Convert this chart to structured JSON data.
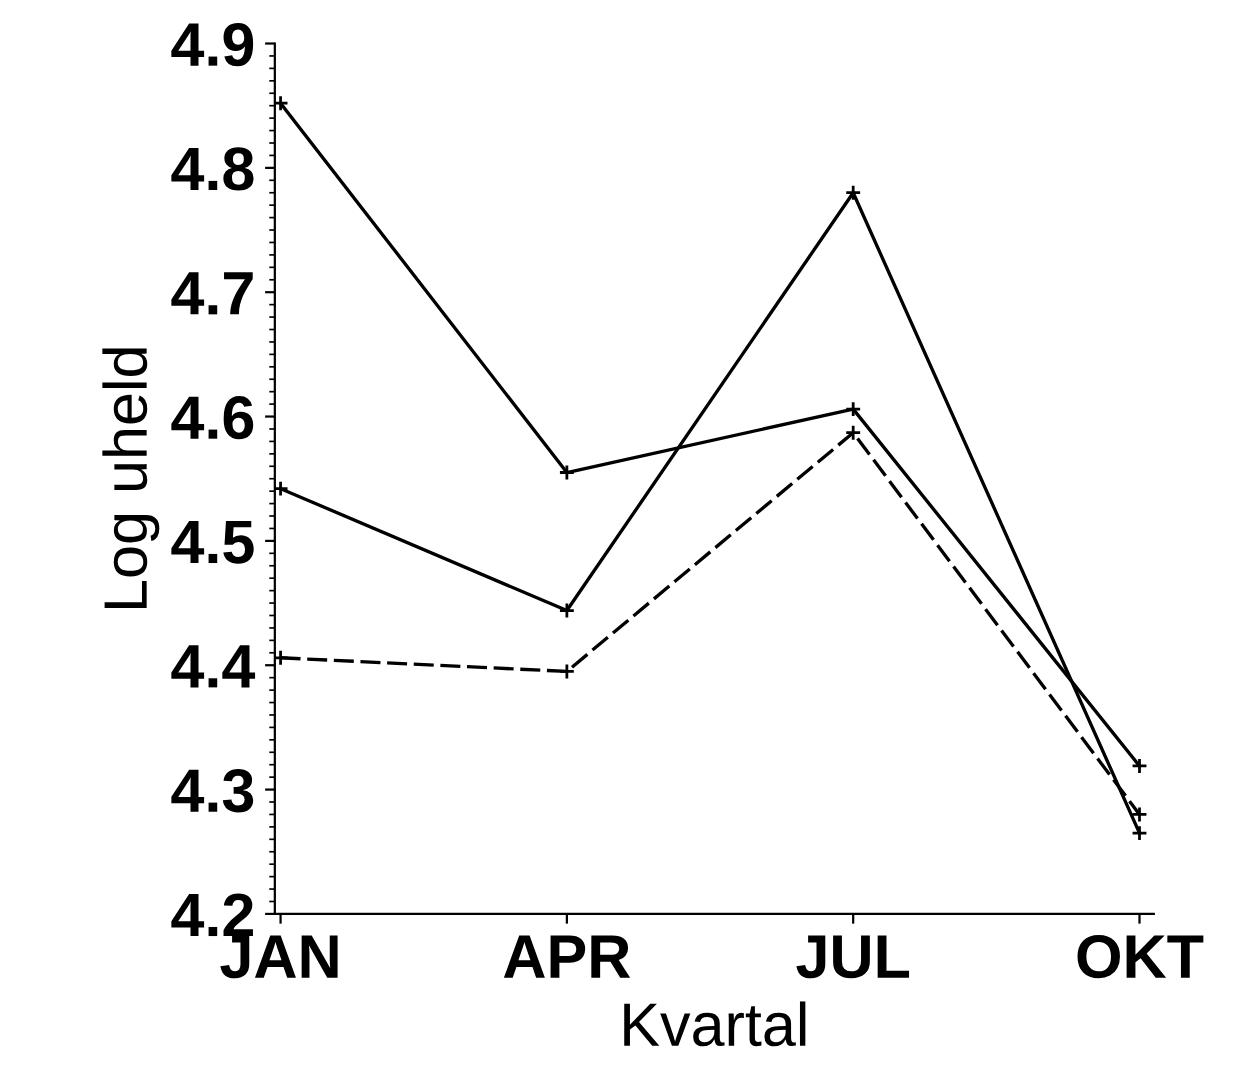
{
  "chart_data": {
    "type": "line",
    "xlabel": "Kvartal",
    "ylabel": "Log uheld",
    "categories": [
      "JAN",
      "APR",
      "JUL",
      "OKT"
    ],
    "series": [
      {
        "color": "#000000",
        "values": [
          4.852,
          4.555,
          4.606,
          4.319
        ],
        "line_style": "solid"
      },
      {
        "color": "#000000",
        "values": [
          4.542,
          4.444,
          4.78,
          4.265
        ],
        "line_style": "solid"
      },
      {
        "color": "#000000",
        "values": [
          4.406,
          4.395,
          4.587,
          4.28
        ],
        "line_style": "dashed"
      }
    ],
    "ylim": [
      4.2,
      4.9
    ],
    "yticks": [
      4.2,
      4.3,
      4.4,
      4.5,
      4.6,
      4.7,
      4.8,
      4.9
    ],
    "marker": "cross",
    "grid": false,
    "legend": false
  }
}
